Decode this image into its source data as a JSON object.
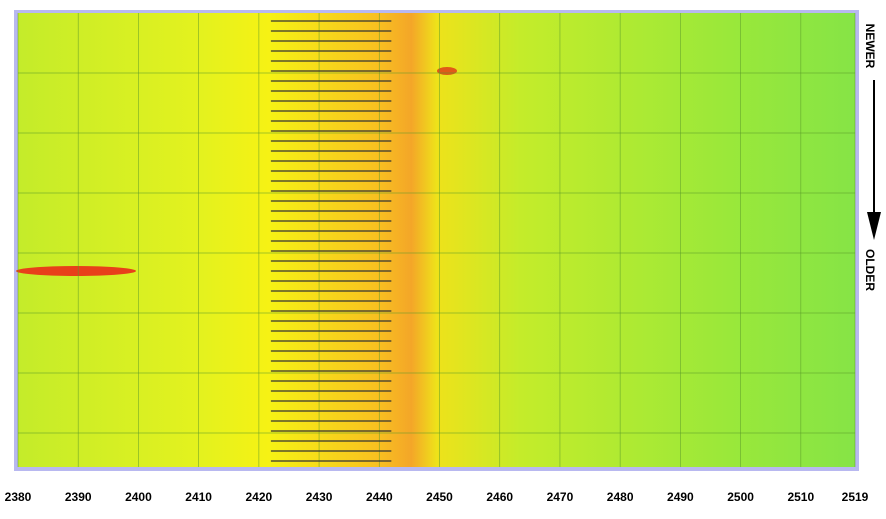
{
  "chart_data": {
    "type": "waterfall",
    "xlim": [
      2380,
      2519
    ],
    "xticks": [
      2380,
      2390,
      2400,
      2410,
      2420,
      2430,
      2440,
      2450,
      2460,
      2470,
      2480,
      2490,
      2500,
      2510,
      2519
    ],
    "grid": true,
    "marker_range": [
      2422,
      2442
    ],
    "top_label": "NEWER",
    "bottom_label": "OLDER"
  }
}
